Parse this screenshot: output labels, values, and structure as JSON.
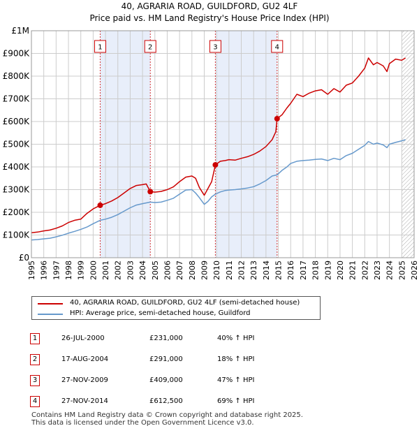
{
  "title_line1": "40, AGRARIA ROAD, GUILDFORD, GU2 4LF",
  "title_line2": "Price paid vs. HM Land Registry's House Price Index (HPI)",
  "colors": {
    "property": "#cc0000",
    "hpi": "#6699cc",
    "shade": "#e8eefa",
    "grid": "#cccccc",
    "marker_line": "#cc0000"
  },
  "legend": {
    "property_label": "40, AGRARIA ROAD, GUILDFORD, GU2 4LF (semi-detached house)",
    "hpi_label": "HPI: Average price, semi-detached house, Guildford"
  },
  "sales": [
    {
      "num": "1",
      "date": "26-JUL-2000",
      "price": "£231,000",
      "hpi": "40% ↑ HPI"
    },
    {
      "num": "2",
      "date": "17-AUG-2004",
      "price": "£291,000",
      "hpi": "18% ↑ HPI"
    },
    {
      "num": "3",
      "date": "27-NOV-2009",
      "price": "£409,000",
      "hpi": "47% ↑ HPI"
    },
    {
      "num": "4",
      "date": "27-NOV-2014",
      "price": "£612,500",
      "hpi": "69% ↑ HPI"
    }
  ],
  "footer": {
    "line1": "Contains HM Land Registry data © Crown copyright and database right 2025.",
    "line2": "This data is licensed under the Open Government Licence v3.0."
  },
  "chart_data": {
    "type": "line",
    "xlim": [
      1995,
      2026
    ],
    "ylim": [
      0,
      1000000
    ],
    "x_ticks": [
      1995,
      1996,
      1997,
      1998,
      1999,
      2000,
      2001,
      2002,
      2003,
      2004,
      2005,
      2006,
      2007,
      2008,
      2009,
      2010,
      2011,
      2012,
      2013,
      2014,
      2015,
      2016,
      2017,
      2018,
      2019,
      2020,
      2021,
      2022,
      2023,
      2024,
      2025,
      2026
    ],
    "y_ticks": [
      {
        "value": 0,
        "label": "£0"
      },
      {
        "value": 100000,
        "label": "£100K"
      },
      {
        "value": 200000,
        "label": "£200K"
      },
      {
        "value": 300000,
        "label": "£300K"
      },
      {
        "value": 400000,
        "label": "£400K"
      },
      {
        "value": 500000,
        "label": "£500K"
      },
      {
        "value": 600000,
        "label": "£600K"
      },
      {
        "value": 700000,
        "label": "£700K"
      },
      {
        "value": 800000,
        "label": "£800K"
      },
      {
        "value": 900000,
        "label": "£900K"
      },
      {
        "value": 1000000,
        "label": "£1M"
      }
    ],
    "shaded_ranges": [
      [
        2000.57,
        2004.63
      ],
      [
        2009.9,
        2014.9
      ]
    ],
    "hatched_from": 2025.0,
    "sale_markers": [
      {
        "label": "1",
        "x": 2000.57,
        "y": 231000
      },
      {
        "label": "2",
        "x": 2004.63,
        "y": 291000
      },
      {
        "label": "3",
        "x": 2009.9,
        "y": 409000
      },
      {
        "label": "4",
        "x": 2014.9,
        "y": 612500
      }
    ],
    "series": [
      {
        "name": "40, AGRARIA ROAD, GUILDFORD, GU2 4LF (semi-detached house)",
        "x": [
          1995.0,
          1995.5,
          1996.0,
          1996.5,
          1997.0,
          1997.5,
          1998.0,
          1998.5,
          1999.0,
          1999.5,
          2000.0,
          2000.57,
          2001.0,
          2001.5,
          2002.0,
          2002.5,
          2003.0,
          2003.5,
          2004.0,
          2004.3,
          2004.63,
          2005.0,
          2005.5,
          2006.0,
          2006.5,
          2007.0,
          2007.5,
          2008.0,
          2008.3,
          2008.6,
          2009.0,
          2009.3,
          2009.6,
          2009.9,
          2010.3,
          2010.7,
          2011.0,
          2011.5,
          2012.0,
          2012.5,
          2013.0,
          2013.5,
          2014.0,
          2014.5,
          2014.8,
          2014.9,
          2015.3,
          2015.7,
          2016.0,
          2016.5,
          2017.0,
          2017.5,
          2018.0,
          2018.5,
          2019.0,
          2019.5,
          2020.0,
          2020.5,
          2021.0,
          2021.5,
          2022.0,
          2022.3,
          2022.7,
          2023.0,
          2023.5,
          2023.8,
          2024.0,
          2024.5,
          2025.0,
          2025.3
        ],
        "y": [
          110000,
          113000,
          118000,
          122000,
          130000,
          140000,
          155000,
          165000,
          170000,
          195000,
          215000,
          231000,
          238000,
          250000,
          265000,
          285000,
          305000,
          318000,
          322000,
          325000,
          291000,
          289000,
          292000,
          300000,
          312000,
          335000,
          355000,
          360000,
          350000,
          310000,
          275000,
          305000,
          335000,
          409000,
          425000,
          428000,
          432000,
          430000,
          438000,
          445000,
          455000,
          470000,
          490000,
          520000,
          555000,
          612500,
          630000,
          660000,
          680000,
          720000,
          710000,
          725000,
          735000,
          740000,
          720000,
          745000,
          730000,
          760000,
          770000,
          800000,
          835000,
          880000,
          850000,
          860000,
          845000,
          820000,
          855000,
          875000,
          870000,
          880000
        ]
      },
      {
        "name": "HPI: Average price, semi-detached house, Guildford",
        "x": [
          1995.0,
          1995.5,
          1996.0,
          1996.5,
          1997.0,
          1997.5,
          1998.0,
          1998.5,
          1999.0,
          1999.5,
          2000.0,
          2000.57,
          2001.0,
          2001.5,
          2002.0,
          2002.5,
          2003.0,
          2003.5,
          2004.0,
          2004.63,
          2005.0,
          2005.5,
          2006.0,
          2006.5,
          2007.0,
          2007.5,
          2008.0,
          2008.3,
          2008.6,
          2009.0,
          2009.3,
          2009.6,
          2009.9,
          2010.3,
          2010.7,
          2011.0,
          2011.5,
          2012.0,
          2012.5,
          2013.0,
          2013.5,
          2014.0,
          2014.5,
          2014.9,
          2015.3,
          2015.7,
          2016.0,
          2016.5,
          2017.0,
          2017.5,
          2018.0,
          2018.5,
          2019.0,
          2019.5,
          2020.0,
          2020.5,
          2021.0,
          2021.5,
          2022.0,
          2022.3,
          2022.7,
          2023.0,
          2023.5,
          2023.8,
          2024.0,
          2024.5,
          2025.0,
          2025.3
        ],
        "y": [
          78000,
          80000,
          83000,
          86000,
          92000,
          99000,
          108000,
          116000,
          125000,
          135000,
          150000,
          165000,
          170000,
          178000,
          190000,
          205000,
          220000,
          232000,
          238000,
          245000,
          243000,
          245000,
          253000,
          262000,
          280000,
          298000,
          300000,
          285000,
          265000,
          235000,
          248000,
          268000,
          280000,
          290000,
          296000,
          298000,
          300000,
          303000,
          307000,
          313000,
          325000,
          340000,
          360000,
          365000,
          385000,
          400000,
          415000,
          425000,
          428000,
          430000,
          433000,
          435000,
          428000,
          438000,
          432000,
          450000,
          460000,
          478000,
          495000,
          512000,
          500000,
          505000,
          497000,
          485000,
          500000,
          508000,
          515000,
          520000
        ]
      }
    ]
  }
}
